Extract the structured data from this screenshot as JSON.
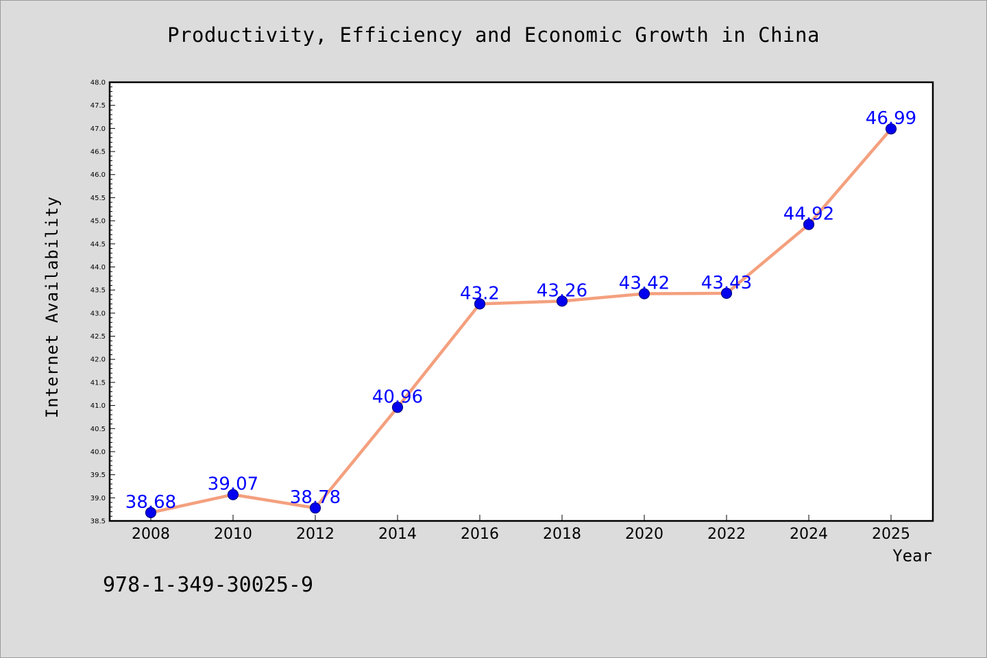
{
  "chart_data": {
    "type": "line",
    "title": "Productivity, Efficiency and Economic Growth in China",
    "xlabel": "Year",
    "ylabel": "Internet Availability",
    "categories": [
      "2008",
      "2010",
      "2012",
      "2014",
      "2016",
      "2018",
      "2020",
      "2022",
      "2024",
      "2025"
    ],
    "values": [
      38.68,
      39.07,
      38.78,
      40.96,
      43.2,
      43.26,
      43.42,
      43.43,
      44.92,
      46.99
    ],
    "data_labels": [
      "38.68",
      "39.07",
      "38.78",
      "40.96",
      "43.2",
      "43.26",
      "43.42",
      "43.43",
      "44.92",
      "46.99"
    ],
    "ylim": [
      38.5,
      48.0
    ],
    "y_ticks": [
      "38.5",
      "39.0",
      "39.5",
      "40.0",
      "40.5",
      "41.0",
      "41.5",
      "42.0",
      "42.5",
      "43.0",
      "43.5",
      "44.0",
      "44.5",
      "45.0",
      "45.5",
      "46.0",
      "46.5",
      "47.0",
      "47.5",
      "48.0"
    ],
    "grid": false,
    "legend": "none",
    "colors": {
      "line": "#f4a07e",
      "marker": "#0000ee",
      "marker_edge": "#000080",
      "label": "#0000ff",
      "background": "#dcdcdc",
      "plot_area": "#ffffff"
    }
  },
  "footer": {
    "isbn": "978-1-349-30025-9"
  }
}
